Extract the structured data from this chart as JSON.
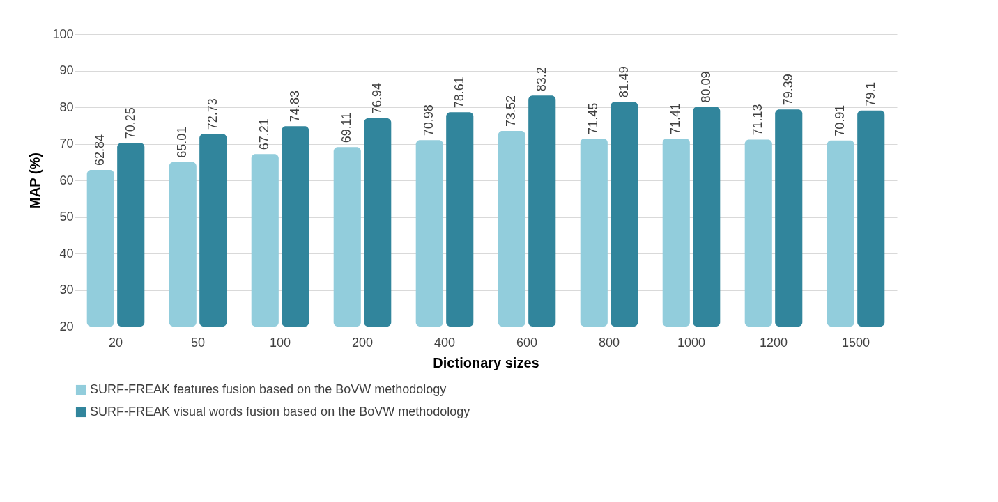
{
  "chart_data": {
    "type": "bar",
    "xlabel": "Dictionary sizes",
    "ylabel": "MAP (%)",
    "categories": [
      "20",
      "50",
      "100",
      "200",
      "400",
      "600",
      "800",
      "1000",
      "1200",
      "1500"
    ],
    "series": [
      {
        "name": "SURF-FREAK features fusion based on the BoVW methodology",
        "color": "#92cddc",
        "values": [
          62.84,
          65.01,
          67.21,
          69.11,
          70.98,
          73.52,
          71.45,
          71.41,
          71.13,
          70.91
        ]
      },
      {
        "name": "SURF-FREAK visual words fusion based on the BoVW methodology",
        "color": "#31859c",
        "values": [
          70.25,
          72.73,
          74.83,
          76.94,
          78.61,
          83.2,
          81.49,
          80.09,
          79.39,
          79.1
        ]
      }
    ],
    "ylim": [
      20,
      100
    ],
    "yticks": [
      20,
      30,
      40,
      50,
      60,
      70,
      80,
      90,
      100
    ],
    "grid": "y",
    "legend": "bottom",
    "data_labels": true
  }
}
